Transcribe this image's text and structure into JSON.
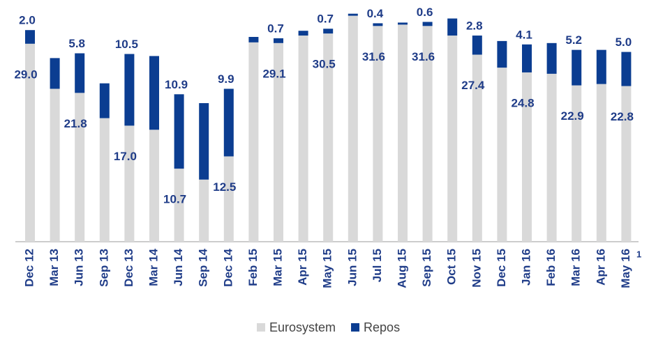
{
  "chart_data": {
    "type": "stacked_bar",
    "categories": [
      "Dec 12",
      "Mar 13",
      "Jun 13",
      "Sep 13",
      "Dec 13",
      "Mar 14",
      "Jun 14",
      "Sep 14",
      "Dec 14",
      "Feb 15",
      "Mar 15",
      "Apr 15",
      "May 15",
      "Jun 15",
      "Jul 15",
      "Aug 15",
      "Sep 15",
      "Oct 15",
      "Nov 15",
      "Dec 15",
      "Jan 16",
      "Feb 16",
      "Mar 16",
      "Apr 16",
      "May 16"
    ],
    "series": [
      {
        "name": "Eurosystem",
        "color": "#d9d9d9",
        "values": [
          29.0,
          22.4,
          21.8,
          18.1,
          17.0,
          16.4,
          10.7,
          9.1,
          12.5,
          29.2,
          29.1,
          30.2,
          30.5,
          33.1,
          31.6,
          31.8,
          31.6,
          30.2,
          27.4,
          25.5,
          24.8,
          24.6,
          22.9,
          23.1,
          22.8
        ],
        "value_labels": [
          "29.0",
          null,
          "21.8",
          null,
          "17.0",
          null,
          "10.7",
          null,
          "12.5",
          null,
          "29.1",
          null,
          "30.5",
          null,
          "31.6",
          null,
          "31.6",
          null,
          "27.4",
          null,
          "24.8",
          null,
          "22.9",
          null,
          "22.8"
        ]
      },
      {
        "name": "Repos",
        "color": "#0b3d91",
        "values": [
          2.0,
          4.5,
          5.8,
          5.1,
          10.5,
          10.8,
          10.9,
          11.2,
          9.9,
          0.8,
          0.7,
          0.7,
          0.7,
          0.3,
          0.4,
          0.3,
          0.6,
          2.5,
          2.8,
          3.9,
          4.1,
          4.5,
          5.2,
          5.0,
          5.0
        ],
        "value_labels": [
          "2.0",
          null,
          "5.8",
          null,
          "10.5",
          null,
          "10.9",
          null,
          "9.9",
          null,
          "0.7",
          null,
          "0.7",
          null,
          "0.4",
          null,
          "0.6",
          null,
          "2.8",
          null,
          "4.1",
          null,
          "5.2",
          null,
          "5.0"
        ]
      }
    ],
    "ylim": [
      0,
      35
    ],
    "footnote": "1"
  }
}
